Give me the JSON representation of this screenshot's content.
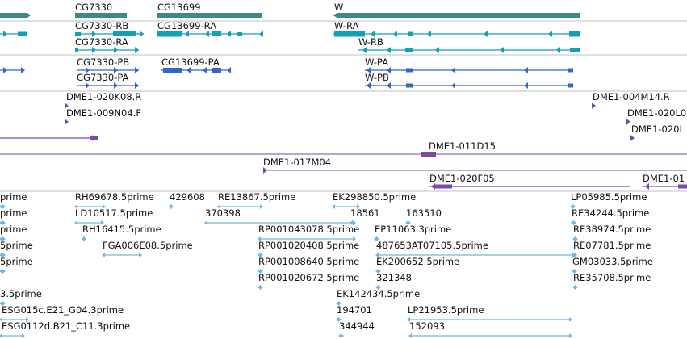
{
  "colors": {
    "gene": "#3a8a8a",
    "transcript": "#10a0b8",
    "protein": "#3465c8",
    "clone": "#7a4aa6",
    "est": "#78b4e0",
    "divider": "#c0c0c0"
  },
  "genes": [
    {
      "id": "g-left",
      "label": ""
    },
    {
      "id": "g-cg7330",
      "label": "CG7330"
    },
    {
      "id": "g-cg13699",
      "label": "CG13699"
    },
    {
      "id": "g-w",
      "label": "W"
    }
  ],
  "transcripts": [
    {
      "id": "t-left",
      "label": ""
    },
    {
      "id": "t-cg7330-rb",
      "label": "CG7330-RB"
    },
    {
      "id": "t-cg7330-ra",
      "label": "CG7330-RA"
    },
    {
      "id": "t-cg13699-ra",
      "label": "CG13699-RA"
    },
    {
      "id": "t-w-ra",
      "label": "W-RA"
    },
    {
      "id": "t-w-rb",
      "label": "W-RB"
    }
  ],
  "proteins": [
    {
      "id": "p-left",
      "label": ""
    },
    {
      "id": "p-cg7330-pb",
      "label": "CG7330-PB"
    },
    {
      "id": "p-cg7330-pa",
      "label": "CG7330-PA"
    },
    {
      "id": "p-cg13699-pa",
      "label": "CG13699-PA"
    },
    {
      "id": "p-w-pa",
      "label": "W-PA"
    },
    {
      "id": "p-w-pb",
      "label": "W-PB"
    }
  ],
  "clones": [
    {
      "id": "c1",
      "label": "DME1-020K08.R"
    },
    {
      "id": "c2",
      "label": "DME1-009N04.F"
    },
    {
      "id": "c3",
      "label": "DME1-004M14.R"
    },
    {
      "id": "c4",
      "label": "DME1-020L0"
    },
    {
      "id": "c5",
      "label": "DME1-020L"
    },
    {
      "id": "c6",
      "label": ""
    },
    {
      "id": "c7",
      "label": "DME1-011D15"
    },
    {
      "id": "c8",
      "label": "DME1-017M04"
    },
    {
      "id": "c9",
      "label": "DME1-020F05"
    },
    {
      "id": "c10",
      "label": "DME1-01"
    }
  ],
  "ests": [
    {
      "id": "e1",
      "label": "prime"
    },
    {
      "id": "e2",
      "label": "RH69678.5prime"
    },
    {
      "id": "e3",
      "label": "429608"
    },
    {
      "id": "e4",
      "label": "RE13867.5prime"
    },
    {
      "id": "e5",
      "label": "EK298850.5prime"
    },
    {
      "id": "e6",
      "label": "LP05985.5prime"
    },
    {
      "id": "e7",
      "label": "prime"
    },
    {
      "id": "e8",
      "label": "LD10517.5prime"
    },
    {
      "id": "e9",
      "label": "370398"
    },
    {
      "id": "e10",
      "label": "18561"
    },
    {
      "id": "e11",
      "label": "163510"
    },
    {
      "id": "e12",
      "label": "RE34244.5prime"
    },
    {
      "id": "e13",
      "label": "prime"
    },
    {
      "id": "e14",
      "label": "RH16415.5prime"
    },
    {
      "id": "e15",
      "label": "RP001043078.5prime"
    },
    {
      "id": "e16",
      "label": "EP11063.3prime"
    },
    {
      "id": "e17",
      "label": "RE38974.5prime"
    },
    {
      "id": "e18",
      "label": "5prime"
    },
    {
      "id": "e19",
      "label": "FGA006E08.5prime"
    },
    {
      "id": "e20",
      "label": "RP001020408.5prime"
    },
    {
      "id": "e21",
      "label": "487653AT07105.5prime"
    },
    {
      "id": "e22",
      "label": "RE07781.5prime"
    },
    {
      "id": "e23",
      "label": "5prime"
    },
    {
      "id": "e24",
      "label": "RP001008640.5prime"
    },
    {
      "id": "e25",
      "label": "EK200652.5prime"
    },
    {
      "id": "e26",
      "label": "GM03033.5prime"
    },
    {
      "id": "e27",
      "label": "RP001020672.5prime"
    },
    {
      "id": "e28",
      "label": "321348"
    },
    {
      "id": "e29",
      "label": "RE35708.5prime"
    },
    {
      "id": "e30",
      "label": "3.5prime"
    },
    {
      "id": "e31",
      "label": "EK142434.5prime"
    },
    {
      "id": "e32",
      "label": "ESG015c.E21_G04.3prime"
    },
    {
      "id": "e33",
      "label": "194701"
    },
    {
      "id": "e34",
      "label": "LP21953.5prime"
    },
    {
      "id": "e35",
      "label": "ESG0112d.B21_C11.3prime"
    },
    {
      "id": "e36",
      "label": "344944"
    },
    {
      "id": "e37",
      "label": "152093"
    }
  ]
}
